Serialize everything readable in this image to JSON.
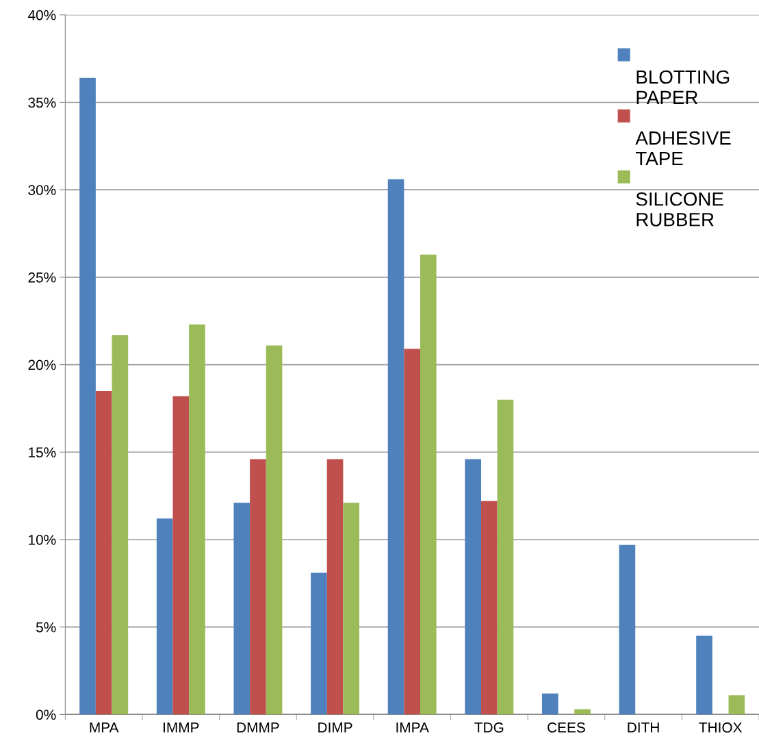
{
  "chart_data": {
    "type": "bar",
    "categories": [
      "MPA",
      "IMMP",
      "DMMP",
      "DIMP",
      "IMPA",
      "TDG",
      "CEES",
      "DITH",
      "THIOX"
    ],
    "series": [
      {
        "name": "BLOTTING PAPER",
        "color": "#4f81bd",
        "values": [
          36.4,
          11.2,
          12.1,
          8.1,
          30.6,
          14.6,
          1.2,
          9.7,
          4.5
        ]
      },
      {
        "name": "ADHESIVE TAPE",
        "color": "#c0504d",
        "values": [
          18.5,
          18.2,
          14.6,
          14.6,
          20.9,
          12.2,
          0,
          0,
          0
        ]
      },
      {
        "name": "SILICONE RUBBER",
        "color": "#9bbb59",
        "values": [
          21.7,
          22.3,
          21.1,
          12.1,
          26.3,
          18.0,
          0.3,
          0,
          1.1
        ]
      }
    ],
    "ylim": [
      0,
      40
    ],
    "yticks": [
      {
        "value": 0,
        "label": "0%"
      },
      {
        "value": 5,
        "label": "5%"
      },
      {
        "value": 10,
        "label": "10%"
      },
      {
        "value": 15,
        "label": "15%"
      },
      {
        "value": 20,
        "label": "20%"
      },
      {
        "value": 25,
        "label": "25%"
      },
      {
        "value": 30,
        "label": "30%"
      },
      {
        "value": 35,
        "label": "35%"
      },
      {
        "value": 40,
        "label": "40%"
      }
    ],
    "grid": "y",
    "legend": "top right"
  }
}
